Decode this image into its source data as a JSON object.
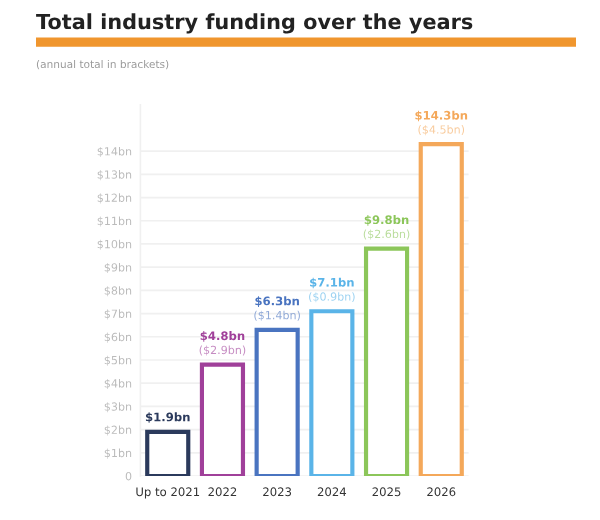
{
  "chart_data": {
    "type": "bar",
    "title": "Total industry funding over the years",
    "subtitle": "(annual total in brackets)",
    "categories": [
      "Up to 2021",
      "2022",
      "2023",
      "2024",
      "2025",
      "2026"
    ],
    "values": [
      1.9,
      4.8,
      6.3,
      7.1,
      9.8,
      14.3
    ],
    "colors": [
      "#2b3a5c",
      "#a0409a",
      "#4a74c0",
      "#5ab4e8",
      "#8cc65a",
      "#f4a85a"
    ],
    "value_labels": [
      "$1.9bn",
      "$4.8bn",
      "$6.3bn",
      "$7.1bn",
      "$9.8bn",
      "$14.3bn"
    ],
    "annotations": [
      {
        "text": "($2.9bn)",
        "x": "2022",
        "y": 4.8
      },
      {
        "text": "($1.4bn)",
        "x": "2023",
        "y": 6.3
      },
      {
        "text": "($0.9bn)",
        "x": "2024",
        "y": 7.1
      },
      {
        "text": "($2.6bn)",
        "x": "2025",
        "y": 9.8
      },
      {
        "text": "($4.5bn)",
        "x": "2026",
        "y": 14.3
      }
    ],
    "ylim": [
      0,
      16
    ],
    "yticks": [
      0,
      {
        "value": 1,
        "label": "$1bn"
      },
      {
        "value": 2,
        "label": "$2bn"
      },
      {
        "value": 3,
        "label": "$3bn"
      },
      {
        "value": 4,
        "label": "$4bn"
      },
      {
        "value": 5,
        "label": "$5bn"
      },
      {
        "value": 6,
        "label": "$6bn"
      },
      {
        "value": 7,
        "label": "$7bn"
      },
      {
        "value": 8,
        "label": "$8bn"
      },
      {
        "value": 9,
        "label": "$9bn"
      },
      {
        "value": 10,
        "label": "$10bn"
      },
      {
        "value": 11,
        "label": "$11bn"
      },
      {
        "value": 12,
        "label": "$12bn"
      },
      {
        "value": 13,
        "label": "$13bn"
      },
      {
        "value": 14,
        "label": "$14bn"
      }
    ],
    "grid": "y"
  }
}
